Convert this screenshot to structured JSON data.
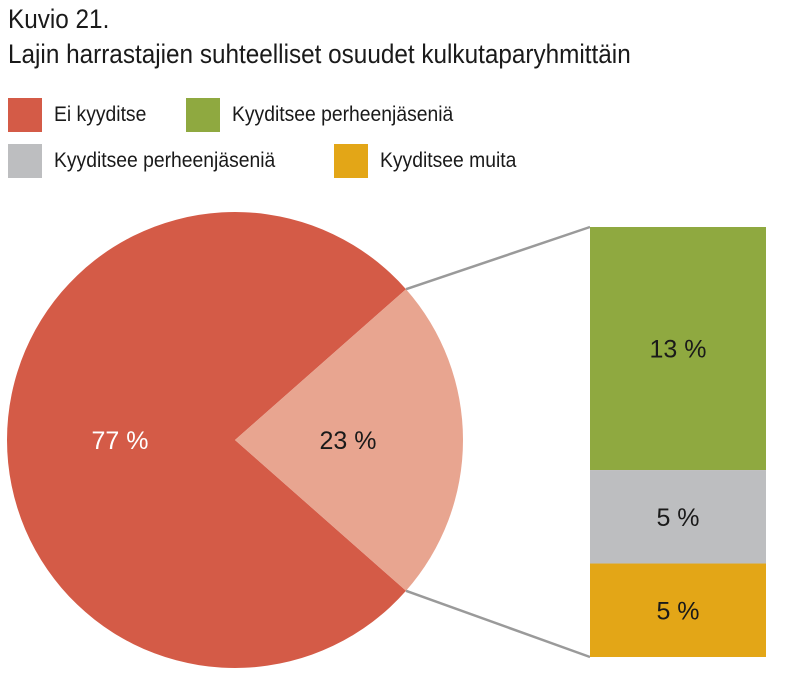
{
  "figure_label": "Kuvio 21.",
  "title": "Lajin harrastajien suhteelliset osuudet kulkutaparyhmittäin",
  "colors": {
    "ei_kyyditse": "#d45b47",
    "pie_secondary": "#e8a590",
    "green": "#8fa940",
    "gray": "#bdbec0",
    "orange": "#e3a617",
    "connector": "#9a9a9a"
  },
  "legend": [
    {
      "label": "Ei kyyditse",
      "color": "#d45b47"
    },
    {
      "label": "Kyyditsee perheenjäseniä",
      "color": "#8fa940"
    },
    {
      "label": "Kyyditsee perheenjäseniä",
      "color": "#bdbec0"
    },
    {
      "label": "Kyyditsee muita",
      "color": "#e3a617"
    }
  ],
  "chart_data": {
    "type": "pie",
    "title": "Lajin harrastajien suhteelliset osuudet kulkutaparyhmittäin",
    "slices": [
      {
        "name": "Ei kyyditse",
        "value": 77,
        "label": "77 %",
        "color": "#d45b47"
      },
      {
        "name": "",
        "value": 23,
        "label": "23 %",
        "color": "#e8a590"
      }
    ],
    "breakdown_of": "23 %",
    "breakdown": [
      {
        "name": "Kyyditsee perheenjäseniä",
        "value": 13,
        "label": "13 %",
        "color": "#8fa940"
      },
      {
        "name": "Kyyditsee perheenjäseniä",
        "value": 5,
        "label": "5 %",
        "color": "#bdbec0"
      },
      {
        "name": "Kyyditsee muita",
        "value": 5,
        "label": "5 %",
        "color": "#e3a617"
      }
    ]
  }
}
